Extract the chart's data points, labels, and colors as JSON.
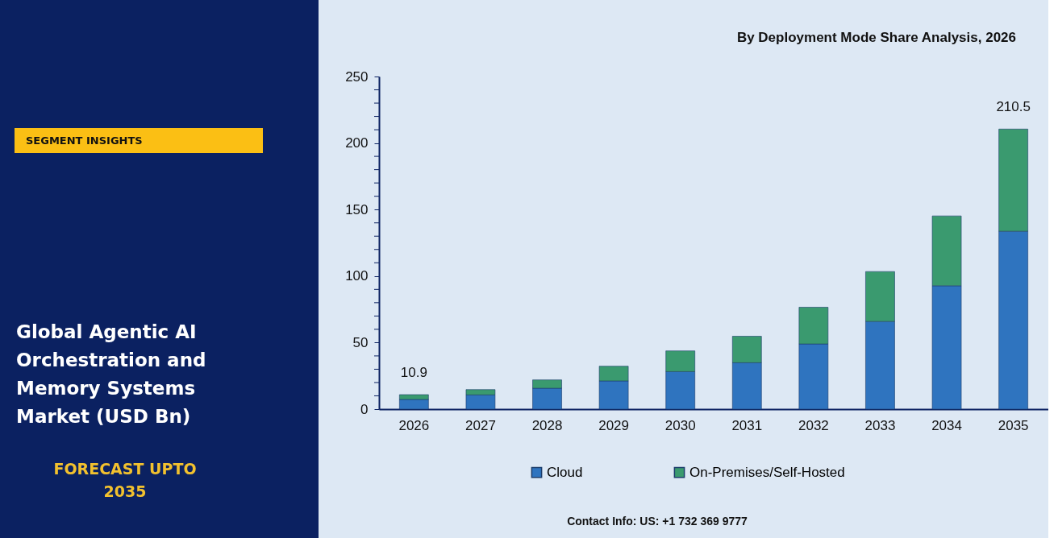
{
  "chart_data": {
    "type": "bar",
    "stacked": true,
    "title": "Global Agentic AI Orchestration and Memory Systems Market (USD Bn)",
    "subtitle": "By Deployment Mode Share Analysis, 2026",
    "categories": [
      "2026",
      "2027",
      "2028",
      "2029",
      "2030",
      "2031",
      "2032",
      "2033",
      "2034",
      "2035"
    ],
    "series": [
      {
        "name": "Cloud",
        "color": "#2f74bf",
        "values": [
          7.3,
          10.7,
          15.7,
          21.2,
          28.2,
          34.9,
          49.0,
          65.9,
          92.7,
          133.7
        ]
      },
      {
        "name": "On-Premises/Self-Hosted",
        "color": "#3a9a6f",
        "values": [
          3.6,
          4.0,
          6.3,
          11.1,
          15.6,
          19.9,
          27.6,
          37.5,
          52.5,
          76.8
        ]
      }
    ],
    "totals": [
      "10.9",
      null,
      null,
      null,
      null,
      null,
      null,
      null,
      null,
      "210.5"
    ],
    "ylim": [
      0,
      250
    ],
    "yticks": [
      0,
      {
        "value": 10,
        "label": null
      },
      {
        "value": 20,
        "label": null
      },
      {
        "value": 30,
        "label": null
      },
      {
        "value": 40,
        "label": null
      },
      50,
      {
        "value": 60,
        "label": null
      },
      {
        "value": 70,
        "label": null
      },
      {
        "value": 80,
        "label": null
      },
      {
        "value": 90,
        "label": null
      },
      100,
      {
        "value": 110,
        "label": null
      },
      {
        "value": 120,
        "label": null
      },
      {
        "value": 130,
        "label": null
      },
      {
        "value": 140,
        "label": null
      },
      150,
      {
        "value": 160,
        "label": null
      },
      {
        "value": 170,
        "label": null
      },
      {
        "value": 180,
        "label": null
      },
      {
        "value": 190,
        "label": null
      },
      200,
      {
        "value": 210,
        "label": null
      },
      {
        "value": 220,
        "label": null
      },
      {
        "value": 230,
        "label": null
      },
      {
        "value": 240,
        "label": null
      },
      250
    ],
    "legend": "bottom",
    "grid": false,
    "annotations": [
      "SEGMENT INSIGHTS",
      "FORECAST UPTO 2035",
      "Contact Info: US: +1 732 369 9777"
    ]
  }
}
